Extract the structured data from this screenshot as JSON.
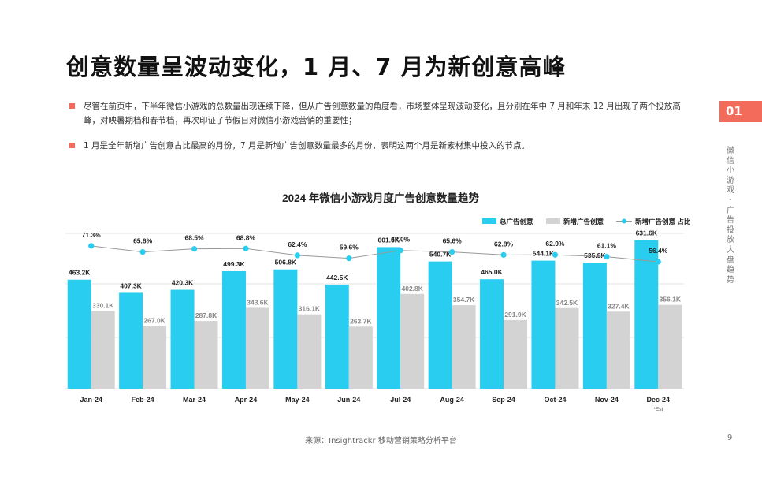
{
  "page": {
    "title": "创意数量呈波动变化，1 月、7 月为新创意高峰",
    "bullets": [
      "尽管在前页中，下半年微信小游戏的总数量出现连续下降，但从广告创意数量的角度看，市场整体呈现波动变化，且分别在年中 7 月和年末 12 月出现了两个投放高峰，对映暑期档和春节档，再次印证了节假日对微信小游戏营销的重要性；",
      "1 月是全年新增广告创意占比最高的月份，7 月是新增广告创意数量最多的月份，表明这两个月是新素材集中投入的节点。"
    ],
    "section_tab": "01",
    "side_label": "微信小游戏 · 广告投放大盘趋势",
    "source": "来源：Insightrackr 移动营销策略分析平台",
    "page_number": "9"
  },
  "colors": {
    "accent": "#f26b5b",
    "total_bar": "#29cdf0",
    "new_bar": "#d3d3d3",
    "ratio_line": "#999999",
    "ratio_point": "#29cdf0"
  },
  "chart_data": {
    "type": "bar",
    "title": "2024 年微信小游戏月度广告创意数量趋势",
    "categories": [
      "Jan-24",
      "Feb-24",
      "Mar-24",
      "Apr-24",
      "May-24",
      "Jun-24",
      "Jul-24",
      "Aug-24",
      "Sep-24",
      "Oct-24",
      "Nov-24",
      "Dec-24"
    ],
    "category_note": "*Est",
    "series": [
      {
        "name": "总广告创意",
        "kind": "bar",
        "values": [
          463.2,
          407.3,
          420.3,
          499.3,
          506.8,
          442.5,
          601.6,
          540.7,
          465.0,
          544.1,
          535.8,
          631.6
        ],
        "labels": [
          "463.2K",
          "407.3K",
          "420.3K",
          "499.3K",
          "506.8K",
          "442.5K",
          "601.6K",
          "540.7K",
          "465.0K",
          "544.1K",
          "535.8K",
          "631.6K"
        ]
      },
      {
        "name": "新增广告创意",
        "kind": "bar",
        "values": [
          330.1,
          267.0,
          287.8,
          343.6,
          316.1,
          263.7,
          402.8,
          354.7,
          291.9,
          342.5,
          327.4,
          356.1
        ],
        "labels": [
          "330.1K",
          "267.0K",
          "287.8K",
          "343.6K",
          "316.1K",
          "263.7K",
          "402.8K",
          "354.7K",
          "291.9K",
          "342.5K",
          "327.4K",
          "356.1K"
        ]
      },
      {
        "name": "新增广告创意 占比",
        "kind": "line",
        "values": [
          71.3,
          65.6,
          68.5,
          68.8,
          62.4,
          59.6,
          67.0,
          65.6,
          62.8,
          62.9,
          61.1,
          56.4
        ],
        "labels": [
          "71.3%",
          "65.6%",
          "68.5%",
          "68.8%",
          "62.4%",
          "59.6%",
          "67.0%",
          "65.6%",
          "62.8%",
          "62.9%",
          "61.1%",
          "56.4%"
        ]
      }
    ],
    "grid": true,
    "legend": "top-right"
  }
}
